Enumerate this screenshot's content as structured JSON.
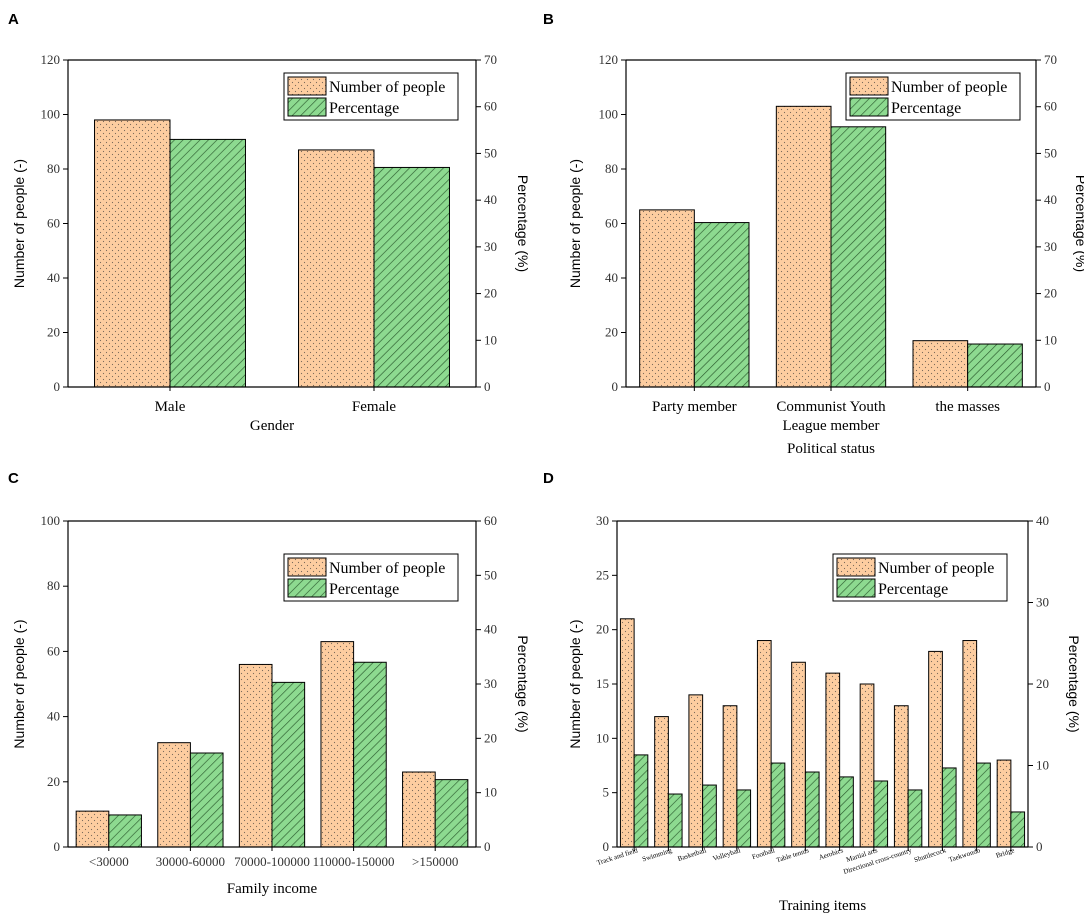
{
  "colors": {
    "people_fill": "#FDCDA0",
    "people_dot": "#7A6A5A",
    "percent_fill": "#8DDA90",
    "percent_hatch": "#2B5A2E"
  },
  "legend": {
    "people": "Number of people",
    "percent": "Percentage"
  },
  "chart_data": [
    {
      "panel": "A",
      "type": "bar",
      "categories": [
        "Male",
        "Female"
      ],
      "series": [
        {
          "name": "Number of people",
          "axis": "left",
          "values": [
            98,
            87
          ]
        },
        {
          "name": "Percentage",
          "axis": "right",
          "values": [
            53,
            47
          ]
        }
      ],
      "xlabel": "Gender",
      "ylabel": "Number of people (-)",
      "y2label": "Percentage (%)",
      "ylim": [
        0,
        120
      ],
      "yticks": [
        0,
        20,
        40,
        60,
        80,
        100,
        120
      ],
      "y2lim": [
        0,
        70
      ],
      "y2ticks": [
        0,
        10,
        20,
        30,
        40,
        50,
        60,
        70
      ],
      "legend_position": "top-right"
    },
    {
      "panel": "B",
      "type": "bar",
      "categories": [
        "Party member",
        "Communist Youth\nLeague member",
        "the masses"
      ],
      "series": [
        {
          "name": "Number of people",
          "axis": "left",
          "values": [
            65,
            103,
            17
          ]
        },
        {
          "name": "Percentage",
          "axis": "right",
          "values": [
            35.2,
            55.7,
            9.2
          ]
        }
      ],
      "xlabel": "Political status",
      "ylabel": "Number of people (-)",
      "y2label": "Percentage (%)",
      "ylim": [
        0,
        120
      ],
      "yticks": [
        0,
        20,
        40,
        60,
        80,
        100,
        120
      ],
      "y2lim": [
        0,
        70
      ],
      "y2ticks": [
        0,
        10,
        20,
        30,
        40,
        50,
        60,
        70
      ],
      "legend_position": "top-right"
    },
    {
      "panel": "C",
      "type": "bar",
      "categories": [
        "<30000",
        "30000-60000",
        "70000-100000",
        "110000-150000",
        ">150000"
      ],
      "series": [
        {
          "name": "Number of people",
          "axis": "left",
          "values": [
            11,
            32,
            56,
            63,
            23
          ]
        },
        {
          "name": "Percentage",
          "axis": "right",
          "values": [
            5.9,
            17.3,
            30.3,
            34.0,
            12.4
          ]
        }
      ],
      "xlabel": "Family income",
      "ylabel": "Number of people (-)",
      "y2label": "Percentage (%)",
      "ylim": [
        0,
        100
      ],
      "yticks": [
        0,
        20,
        40,
        60,
        80,
        100
      ],
      "y2lim": [
        0,
        60
      ],
      "y2ticks": [
        0,
        10,
        20,
        30,
        40,
        50,
        60
      ],
      "legend_position": "top-right"
    },
    {
      "panel": "D",
      "type": "bar",
      "categories": [
        "Track and field",
        "Swimming",
        "Basketball",
        "Volleyball",
        "Football",
        "Table tennis",
        "Aerobics",
        "Martial arts",
        "Directional cross-country",
        "Shuttlecock",
        "Taekwondo",
        "Bridge"
      ],
      "series": [
        {
          "name": "Number of people",
          "axis": "left",
          "values": [
            21,
            12,
            14,
            13,
            19,
            17,
            16,
            15,
            13,
            18,
            19,
            8
          ]
        },
        {
          "name": "Percentage",
          "axis": "right",
          "values": [
            11.3,
            6.5,
            7.6,
            7.0,
            10.3,
            9.2,
            8.6,
            8.1,
            7.0,
            9.7,
            10.3,
            4.3
          ]
        }
      ],
      "xlabel": "Training items",
      "ylabel": "Number of people (-)",
      "y2label": "Percentage (%)",
      "ylim": [
        0,
        30
      ],
      "yticks": [
        0,
        5,
        10,
        15,
        20,
        25,
        30
      ],
      "y2lim": [
        0,
        40
      ],
      "y2ticks": [
        0,
        10,
        20,
        30,
        40
      ],
      "legend_position": "top-right"
    }
  ]
}
